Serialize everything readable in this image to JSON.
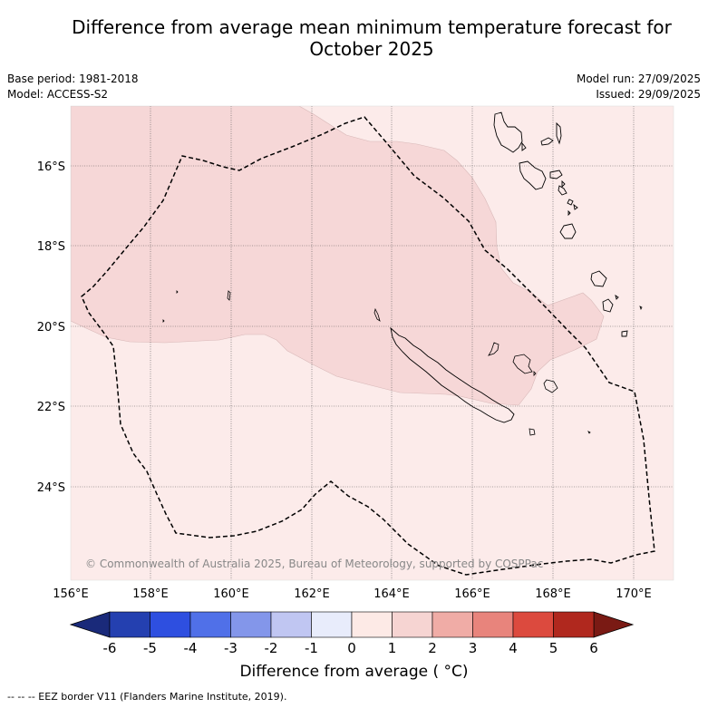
{
  "header": {
    "title_line1": "Difference from average mean minimum temperature forecast for",
    "title_line2": "October 2025",
    "base_period": "Base period: 1981-2018",
    "model": "Model: ACCESS-S2",
    "model_run": "Model run: 27/09/2025",
    "issued": "Issued: 29/09/2025"
  },
  "map": {
    "lat_labels": [
      "16°S",
      "18°S",
      "20°S",
      "22°S",
      "24°S"
    ],
    "lon_labels": [
      "156°E",
      "158°E",
      "160°E",
      "162°E",
      "164°E",
      "166°E",
      "168°E",
      "170°E"
    ],
    "copyright": "© Commonwealth of Australia 2025, Bureau of Meteorology, supported by COSPPac",
    "ocean_class": "0 to 1",
    "anomaly_class": "1 to 2",
    "colors": {
      "ocean": "#fcebea",
      "anomaly": "#f6d7d7",
      "grid": "#555555",
      "land_line": "#000000"
    }
  },
  "colorbar": {
    "ticks": [
      "-6",
      "-5",
      "-4",
      "-3",
      "-2",
      "-1",
      "0",
      "1",
      "2",
      "3",
      "4",
      "5",
      "6"
    ],
    "low_extend_color": "#1a2a7a",
    "high_extend_color": "#7a1a14",
    "colors": [
      "#2440b0",
      "#2e4fe0",
      "#5070e8",
      "#8396ea",
      "#c0c6f2",
      "#e8ecfb",
      "#fdeae6",
      "#f6d4d2",
      "#f0aca6",
      "#e8847c",
      "#dc4a3e",
      "#b0281e"
    ],
    "label": "Difference from average ( °C)"
  },
  "footer": {
    "legend": "--  --  -- EEZ border V11 (Flanders Marine Institute, 2019)."
  }
}
